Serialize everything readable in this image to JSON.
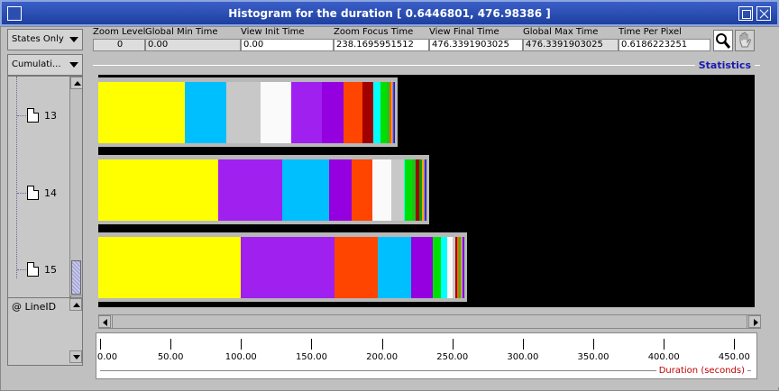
{
  "window": {
    "title": "Histogram for the duration [ 0.6446801, 476.98386 ]"
  },
  "left_panel": {
    "states_combo": "States Only",
    "cumulative_combo": "Cumulati...",
    "tree_items": [
      "13",
      "14",
      "15"
    ],
    "line_id_label": "@ LineID"
  },
  "info_header": {
    "zoom_level": {
      "label": "Zoom Level",
      "value": "0"
    },
    "global_min_time": {
      "label": "Global Min Time",
      "value": "0.00"
    },
    "view_init_time": {
      "label": "View  Init Time",
      "value": "0.00"
    },
    "zoom_focus_time": {
      "label": "Zoom Focus Time",
      "value": "238.1695951512"
    },
    "view_final_time": {
      "label": "View Final Time",
      "value": "476.3391903025"
    },
    "global_max_time": {
      "label": "Global Max Time",
      "value": "476.3391903025"
    },
    "time_per_pixel": {
      "label": "Time Per Pixel",
      "value": "0.6186223251"
    }
  },
  "tools": {
    "zoom_icon": "magnifier-icon",
    "hand_icon": "hand-icon"
  },
  "statistics": {
    "label": "Statistics",
    "rows": [
      {
        "id": "13",
        "segments": [
          {
            "color": "#ffff00",
            "value": 96
          },
          {
            "color": "#00bfff",
            "value": 46
          },
          {
            "color": "#c8c8c8",
            "value": 38
          },
          {
            "color": "#fafafa",
            "value": 34
          },
          {
            "color": "#a020f0",
            "value": 34
          },
          {
            "color": "#9400e0",
            "value": 24
          },
          {
            "color": "#ff4500",
            "value": 21
          },
          {
            "color": "#a00000",
            "value": 12
          },
          {
            "color": "#00ffff",
            "value": 8
          },
          {
            "color": "#00e000",
            "value": 7
          },
          {
            "color": "#20c020",
            "value": 3
          },
          {
            "color": "#ff6000",
            "value": 2
          },
          {
            "color": "#ffa500",
            "value": 1
          },
          {
            "color": "#8080ff",
            "value": 1
          },
          {
            "color": "#6040a0",
            "value": 1
          },
          {
            "color": "#2020a0",
            "value": 1
          }
        ]
      },
      {
        "id": "14",
        "segments": [
          {
            "color": "#ffff00",
            "value": 133
          },
          {
            "color": "#a020f0",
            "value": 71
          },
          {
            "color": "#00bfff",
            "value": 52
          },
          {
            "color": "#9400e0",
            "value": 25
          },
          {
            "color": "#ff4500",
            "value": 23
          },
          {
            "color": "#fafafa",
            "value": 21
          },
          {
            "color": "#c8c8c8",
            "value": 14
          },
          {
            "color": "#00ffff",
            "value": 1
          },
          {
            "color": "#00e000",
            "value": 8
          },
          {
            "color": "#20c020",
            "value": 4
          },
          {
            "color": "#a00000",
            "value": 4
          },
          {
            "color": "#00a000",
            "value": 3
          },
          {
            "color": "#ffa500",
            "value": 2
          },
          {
            "color": "#8080ff",
            "value": 1
          },
          {
            "color": "#6040a0",
            "value": 1
          },
          {
            "color": "#2020a0",
            "value": 1
          }
        ]
      },
      {
        "id": "15",
        "segments": [
          {
            "color": "#ffff00",
            "value": 158
          },
          {
            "color": "#a020f0",
            "value": 104
          },
          {
            "color": "#ff4500",
            "value": 48
          },
          {
            "color": "#00bfff",
            "value": 37
          },
          {
            "color": "#9400e0",
            "value": 24
          },
          {
            "color": "#00e000",
            "value": 9
          },
          {
            "color": "#00ffff",
            "value": 7
          },
          {
            "color": "#fafafa",
            "value": 6
          },
          {
            "color": "#c8c8c8",
            "value": 3
          },
          {
            "color": "#a00000",
            "value": 2
          },
          {
            "color": "#ff6000",
            "value": 2
          },
          {
            "color": "#20c020",
            "value": 2
          },
          {
            "color": "#ffa500",
            "value": 1
          },
          {
            "color": "#8080ff",
            "value": 1
          },
          {
            "color": "#ff00ff",
            "value": 1
          },
          {
            "color": "#2020a0",
            "value": 1
          }
        ]
      }
    ]
  },
  "ruler": {
    "title": "Duration (seconds)",
    "ticks": [
      "0.00",
      "50.00",
      "100.00",
      "150.00",
      "200.00",
      "250.00",
      "300.00",
      "350.00",
      "400.00",
      "450.00"
    ],
    "tick_values": [
      0,
      50,
      100,
      150,
      200,
      250,
      300,
      350,
      400,
      450
    ],
    "max": 476.3391903025
  }
}
